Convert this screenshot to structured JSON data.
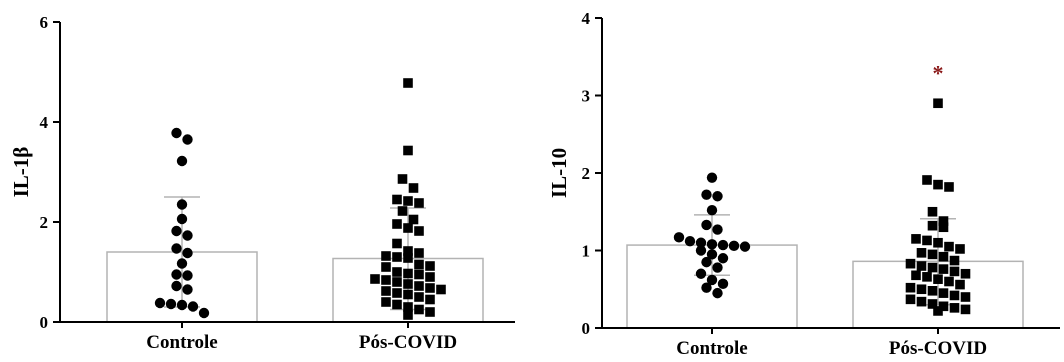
{
  "chart_data": [
    {
      "type": "scatter",
      "ylabel": "IL-1β",
      "ylim": [
        0,
        6
      ],
      "yticks": [
        "0",
        "2",
        "4",
        "6"
      ],
      "categories": [
        "Controle",
        "Pós-COVID"
      ],
      "bar_means": [
        1.4,
        1.27
      ],
      "error_bars": [
        {
          "low": 0.3,
          "high": 2.5
        },
        {
          "low": 0.25,
          "high": 2.28
        }
      ],
      "series": [
        {
          "name": "Controle",
          "marker": "circle",
          "values": [
            3.78,
            3.65,
            3.22,
            2.35,
            2.06,
            1.82,
            1.73,
            1.47,
            1.38,
            1.17,
            0.95,
            0.93,
            0.72,
            0.65,
            0.38,
            0.36,
            0.34,
            0.31,
            0.18
          ]
        },
        {
          "name": "Pós-COVID",
          "marker": "square",
          "values": [
            4.78,
            3.43,
            2.86,
            2.68,
            2.45,
            2.42,
            2.38,
            2.22,
            2.05,
            1.96,
            1.88,
            1.82,
            1.57,
            1.42,
            1.38,
            1.32,
            1.3,
            1.28,
            1.15,
            1.12,
            1.1,
            1.0,
            0.97,
            0.95,
            0.9,
            0.86,
            0.84,
            0.8,
            0.76,
            0.72,
            0.68,
            0.65,
            0.62,
            0.58,
            0.55,
            0.5,
            0.45,
            0.4,
            0.35,
            0.3,
            0.25,
            0.2,
            0.14
          ]
        }
      ],
      "annotations": []
    },
    {
      "type": "scatter",
      "ylabel": "IL-10",
      "ylim": [
        0,
        4
      ],
      "yticks": [
        "0",
        "1",
        "2",
        "3",
        "4"
      ],
      "categories": [
        "Controle",
        "Pós-COVID"
      ],
      "bar_means": [
        1.07,
        0.86
      ],
      "error_bars": [
        {
          "low": 0.68,
          "high": 1.46
        },
        {
          "low": 0.3,
          "high": 1.41
        }
      ],
      "series": [
        {
          "name": "Controle",
          "marker": "circle",
          "values": [
            1.94,
            1.72,
            1.7,
            1.52,
            1.33,
            1.27,
            1.17,
            1.12,
            1.1,
            1.08,
            1.07,
            1.06,
            1.05,
            1.0,
            0.95,
            0.9,
            0.85,
            0.78,
            0.7,
            0.62,
            0.57,
            0.52,
            0.45
          ]
        },
        {
          "name": "Pós-COVID",
          "marker": "square",
          "values": [
            2.9,
            1.91,
            1.85,
            1.82,
            1.5,
            1.38,
            1.32,
            1.3,
            1.15,
            1.13,
            1.1,
            1.05,
            1.02,
            0.97,
            0.95,
            0.92,
            0.87,
            0.83,
            0.8,
            0.78,
            0.76,
            0.73,
            0.7,
            0.68,
            0.66,
            0.63,
            0.6,
            0.56,
            0.52,
            0.5,
            0.48,
            0.45,
            0.42,
            0.4,
            0.37,
            0.34,
            0.31,
            0.28,
            0.26,
            0.24,
            0.22
          ]
        }
      ],
      "annotations": [
        {
          "text": "*",
          "category": 1,
          "y": 3.3,
          "color": "#8b1a1a"
        }
      ]
    }
  ]
}
